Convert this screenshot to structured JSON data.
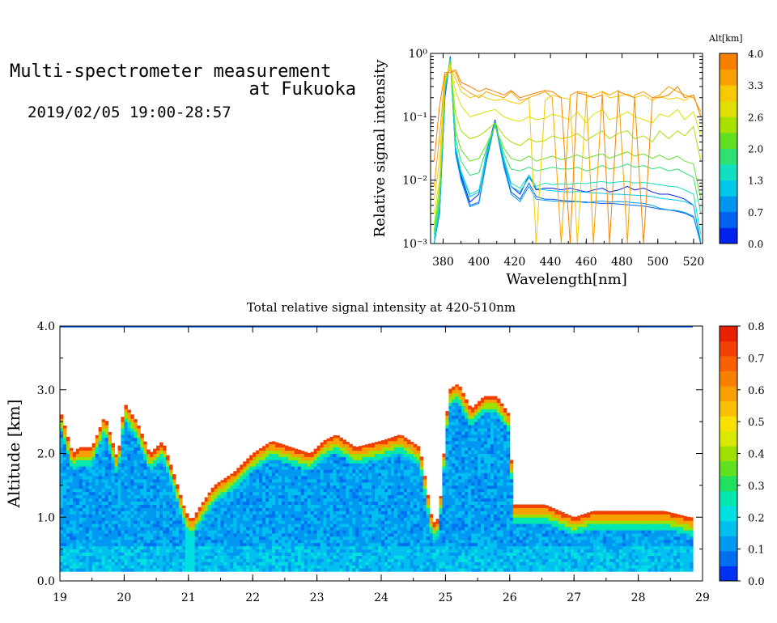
{
  "header": {
    "title_line1": "Multi-spectrometer measurement",
    "title_line2": "at Fukuoka",
    "subtitle": "2019/02/05 19:00-28:57"
  },
  "chart_data": [
    {
      "type": "line",
      "xlabel": "Wavelength[nm]",
      "ylabel": "Relative signal intensity",
      "xlim": [
        373,
        525
      ],
      "ylim": [
        0.001,
        1
      ],
      "y_scale": "log",
      "x_ticks": [
        "380",
        "400",
        "420",
        "440",
        "460",
        "480",
        "500",
        "520"
      ],
      "y_ticks": [
        "10⁻³",
        "10⁻²",
        "10⁻¹",
        "10⁰"
      ],
      "colorbar": {
        "title": "Alt[km]",
        "ticks": [
          "0.0",
          "0.7",
          "1.3",
          "2.0",
          "2.6",
          "3.3",
          "4.0"
        ],
        "colors": [
          "#0022ee",
          "#0060f0",
          "#0096f0",
          "#00c8e8",
          "#10e0c0",
          "#30e070",
          "#60e020",
          "#a8e000",
          "#e0e000",
          "#f8c800",
          "#f8a000",
          "#f88000"
        ]
      },
      "x": [
        375,
        378,
        381,
        384,
        387,
        390,
        395,
        400,
        404,
        409,
        414,
        418,
        423,
        428,
        432,
        437,
        441,
        446,
        451,
        455,
        460,
        464,
        469,
        473,
        478,
        483,
        487,
        492,
        497,
        501,
        506,
        511,
        515,
        520,
        524
      ],
      "series": [
        {
          "color": "#0022ee",
          "values": [
            0.0008,
            0.003,
            0.2,
            0.9,
            0.03,
            0.012,
            0.0045,
            0.006,
            0.025,
            0.09,
            0.02,
            0.008,
            0.006,
            0.012,
            0.007,
            0.0075,
            0.0075,
            0.007,
            0.0075,
            0.007,
            0.0065,
            0.007,
            0.0075,
            0.0065,
            0.007,
            0.008,
            0.007,
            0.0075,
            0.0065,
            0.006,
            0.006,
            0.0055,
            0.005,
            0.004,
            0.0008
          ]
        },
        {
          "color": "#0060f0",
          "values": [
            0.0009,
            0.003,
            0.22,
            0.88,
            0.028,
            0.011,
            0.004,
            0.0045,
            0.02,
            0.085,
            0.018,
            0.0065,
            0.005,
            0.009,
            0.0055,
            0.005,
            0.005,
            0.0048,
            0.0047,
            0.0046,
            0.0045,
            0.0044,
            0.0043,
            0.0043,
            0.0042,
            0.0041,
            0.004,
            0.0039,
            0.0037,
            0.0035,
            0.0034,
            0.0032,
            0.003,
            0.0026,
            0.0008
          ]
        },
        {
          "color": "#0096f0",
          "values": [
            0.0009,
            0.0032,
            0.24,
            0.85,
            0.026,
            0.01,
            0.0038,
            0.0043,
            0.018,
            0.08,
            0.016,
            0.006,
            0.0046,
            0.008,
            0.005,
            0.0048,
            0.0047,
            0.0046,
            0.0045,
            0.0046,
            0.0044,
            0.0046,
            0.0047,
            0.0045,
            0.0046,
            0.0045,
            0.0044,
            0.0043,
            0.004,
            0.0036,
            0.0034,
            0.0033,
            0.0031,
            0.0027,
            0.0009
          ]
        },
        {
          "color": "#00c8e8",
          "values": [
            0.001,
            0.0035,
            0.26,
            0.82,
            0.032,
            0.013,
            0.0055,
            0.0065,
            0.022,
            0.085,
            0.02,
            0.008,
            0.0065,
            0.011,
            0.0075,
            0.007,
            0.0068,
            0.0066,
            0.0065,
            0.0066,
            0.0064,
            0.0063,
            0.0062,
            0.006,
            0.006,
            0.0059,
            0.0058,
            0.0057,
            0.0055,
            0.0052,
            0.005,
            0.0048,
            0.0046,
            0.004,
            0.0011
          ]
        },
        {
          "color": "#10e0c0",
          "values": [
            0.0012,
            0.004,
            0.28,
            0.8,
            0.034,
            0.014,
            0.006,
            0.007,
            0.024,
            0.08,
            0.022,
            0.009,
            0.0075,
            0.012,
            0.008,
            0.009,
            0.0085,
            0.0088,
            0.0086,
            0.009,
            0.0088,
            0.0092,
            0.0095,
            0.009,
            0.0094,
            0.0096,
            0.009,
            0.0092,
            0.0088,
            0.0085,
            0.008,
            0.0078,
            0.007,
            0.006,
            0.0014
          ]
        },
        {
          "color": "#30e070",
          "values": [
            0.0014,
            0.005,
            0.3,
            0.78,
            0.045,
            0.02,
            0.012,
            0.013,
            0.03,
            0.075,
            0.026,
            0.015,
            0.014,
            0.016,
            0.014,
            0.015,
            0.016,
            0.015,
            0.015,
            0.016,
            0.014,
            0.015,
            0.017,
            0.015,
            0.016,
            0.018,
            0.016,
            0.017,
            0.015,
            0.016,
            0.014,
            0.015,
            0.013,
            0.011,
            0.003
          ]
        },
        {
          "color": "#60e020",
          "values": [
            0.0016,
            0.006,
            0.32,
            0.75,
            0.06,
            0.03,
            0.02,
            0.022,
            0.035,
            0.07,
            0.032,
            0.022,
            0.02,
            0.024,
            0.02,
            0.022,
            0.024,
            0.021,
            0.023,
            0.025,
            0.022,
            0.024,
            0.026,
            0.022,
            0.025,
            0.028,
            0.024,
            0.026,
            0.022,
            0.025,
            0.021,
            0.024,
            0.02,
            0.018,
            0.005
          ]
        },
        {
          "color": "#a8e000",
          "values": [
            0.002,
            0.008,
            0.35,
            0.7,
            0.11,
            0.06,
            0.045,
            0.05,
            0.06,
            0.08,
            0.05,
            0.04,
            0.035,
            0.045,
            0.04,
            0.042,
            0.05,
            0.045,
            0.048,
            0.055,
            0.042,
            0.05,
            0.06,
            0.045,
            0.055,
            0.06,
            0.045,
            0.05,
            0.04,
            0.06,
            0.045,
            0.06,
            0.05,
            0.07,
            0.02
          ]
        },
        {
          "color": "#e0e000",
          "values": [
            0.003,
            0.01,
            0.4,
            0.65,
            0.25,
            0.15,
            0.1,
            0.11,
            0.12,
            0.13,
            0.1,
            0.09,
            0.085,
            0.1,
            0.09,
            0.095,
            0.11,
            0.1,
            0.09,
            0.12,
            0.08,
            0.11,
            0.13,
            0.09,
            0.1,
            0.12,
            0.1,
            0.09,
            0.08,
            0.11,
            0.1,
            0.13,
            0.09,
            0.12,
            0.05
          ]
        },
        {
          "color": "#f8c800",
          "values": [
            0.005,
            0.02,
            0.42,
            0.6,
            0.4,
            0.25,
            0.2,
            0.22,
            0.2,
            0.18,
            0.19,
            0.17,
            0.16,
            0.2,
            0.001,
            0.18,
            0.22,
            0.2,
            0.19,
            0.001,
            0.2,
            0.22,
            0.25,
            0.2,
            0.21,
            0.23,
            0.2,
            0.22,
            0.18,
            0.21,
            0.19,
            0.2,
            0.18,
            0.22,
            0.1
          ]
        },
        {
          "color": "#f8a000",
          "values": [
            0.008,
            0.05,
            0.45,
            0.55,
            0.5,
            0.3,
            0.24,
            0.2,
            0.25,
            0.22,
            0.2,
            0.25,
            0.18,
            0.2,
            0.22,
            0.25,
            0.2,
            0.001,
            0.22,
            0.25,
            0.24,
            0.001,
            0.25,
            0.22,
            0.26,
            0.001,
            0.22,
            0.25,
            0.2,
            0.22,
            0.3,
            0.25,
            0.22,
            0.2,
            0.12
          ]
        },
        {
          "color": "#f88000",
          "values": [
            0.02,
            0.15,
            0.5,
            0.5,
            0.55,
            0.35,
            0.3,
            0.25,
            0.28,
            0.25,
            0.22,
            0.26,
            0.2,
            0.22,
            0.24,
            0.26,
            0.25,
            0.2,
            0.001,
            0.24,
            0.22,
            0.2,
            0.22,
            0.001,
            0.25,
            0.22,
            0.2,
            0.001,
            0.2,
            0.2,
            0.22,
            0.3,
            0.2,
            0.22,
            0.1
          ]
        }
      ]
    },
    {
      "type": "heatmap",
      "title": "Total relative signal intensity at 420-510nm",
      "ylabel": "Altitude [km]",
      "xlim": [
        19,
        29
      ],
      "ylim": [
        0,
        4
      ],
      "x_ticks": [
        "19",
        "20",
        "21",
        "22",
        "23",
        "24",
        "25",
        "26",
        "27",
        "28",
        "29"
      ],
      "y_ticks": [
        "0.0",
        "1.0",
        "2.0",
        "3.0",
        "4.0"
      ],
      "colorbar": {
        "ticks": [
          "0.0",
          "0.1",
          "0.2",
          "0.3",
          "0.4",
          "0.5",
          "0.6",
          "0.7",
          "0.8"
        ],
        "range": [
          0,
          0.8
        ],
        "colors": [
          "#0030f0",
          "#0070f0",
          "#0098f0",
          "#00c0f0",
          "#00e0e0",
          "#00e8b0",
          "#20e060",
          "#60e020",
          "#a0e000",
          "#d8e800",
          "#f8e000",
          "#f8c000",
          "#f8a000",
          "#f88000",
          "#f86000",
          "#f04000",
          "#e82000"
        ]
      },
      "profile": {
        "x": [
          19.0,
          19.2,
          19.3,
          19.5,
          19.7,
          19.9,
          20.0,
          20.2,
          20.4,
          20.6,
          20.8,
          20.95,
          21.05,
          21.2,
          21.4,
          21.7,
          22.0,
          22.3,
          22.6,
          22.9,
          23.1,
          23.3,
          23.6,
          24.0,
          24.3,
          24.6,
          24.8,
          24.9,
          25.05,
          25.2,
          25.4,
          25.6,
          25.8,
          26.0,
          26.05,
          26.5,
          26.55,
          27.0,
          27.3,
          27.6,
          28.0,
          28.4,
          28.8
        ],
        "top_km": [
          2.7,
          2.0,
          2.1,
          2.1,
          2.6,
          1.9,
          2.8,
          2.5,
          2.0,
          2.2,
          1.6,
          1.1,
          0.95,
          1.2,
          1.5,
          1.7,
          2.0,
          2.2,
          2.1,
          2.0,
          2.2,
          2.3,
          2.1,
          2.2,
          2.3,
          2.1,
          0.9,
          1.0,
          3.0,
          3.1,
          2.7,
          2.9,
          2.9,
          2.6,
          1.2,
          1.2,
          1.2,
          1.0,
          1.1,
          1.1,
          1.1,
          1.1,
          1.0
        ],
        "base_km": 0.15
      }
    }
  ]
}
